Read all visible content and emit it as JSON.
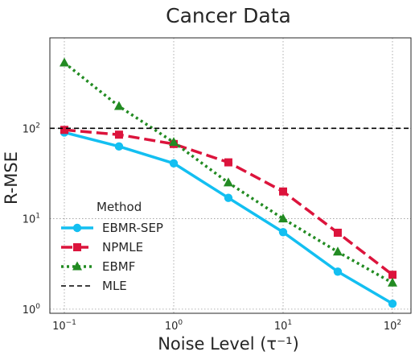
{
  "chart_data": {
    "type": "line",
    "title": "Cancer Data",
    "xlabel": "Noise Level (τ⁻¹)",
    "ylabel": "R-MSE",
    "xscale": "log",
    "yscale": "log",
    "xlim": [
      0.1,
      100
    ],
    "ylim": [
      0.9,
      1000
    ],
    "x_ticks": [
      {
        "value": 0.1,
        "base": "10",
        "exp": "−1"
      },
      {
        "value": 1,
        "base": "10",
        "exp": "0"
      },
      {
        "value": 10,
        "base": "10",
        "exp": "1"
      },
      {
        "value": 100,
        "base": "10",
        "exp": "2"
      }
    ],
    "y_ticks": [
      {
        "value": 1,
        "base": "10",
        "exp": "0"
      },
      {
        "value": 10,
        "base": "10",
        "exp": "1"
      },
      {
        "value": 100,
        "base": "10",
        "exp": "2"
      }
    ],
    "grid": true,
    "grid_style": "dotted",
    "legend": {
      "title": "Method",
      "placement": "lower-left"
    },
    "x": [
      0.1,
      0.316,
      1,
      3.16,
      10,
      31.6,
      100
    ],
    "series": [
      {
        "name": "EBMR-SEP",
        "color": "#13bff1",
        "marker": "circle",
        "line_style": "solid",
        "values": [
          90,
          63,
          41,
          17,
          7.1,
          2.6,
          1.15
        ]
      },
      {
        "name": "NPMLE",
        "color": "#dc143c",
        "marker": "square",
        "line_style": "dashed",
        "values": [
          96,
          85,
          67,
          42,
          20,
          7.0,
          2.4
        ]
      },
      {
        "name": "EBMF",
        "color": "#228b22",
        "marker": "triangle",
        "line_style": "dotted",
        "values": [
          530,
          175,
          70,
          25,
          10,
          4.3,
          1.95
        ]
      },
      {
        "name": "MLE",
        "color": "#000000",
        "marker": "none",
        "line_style": "dashed",
        "values": [
          100,
          100,
          100,
          100,
          100,
          100,
          100
        ]
      }
    ]
  }
}
